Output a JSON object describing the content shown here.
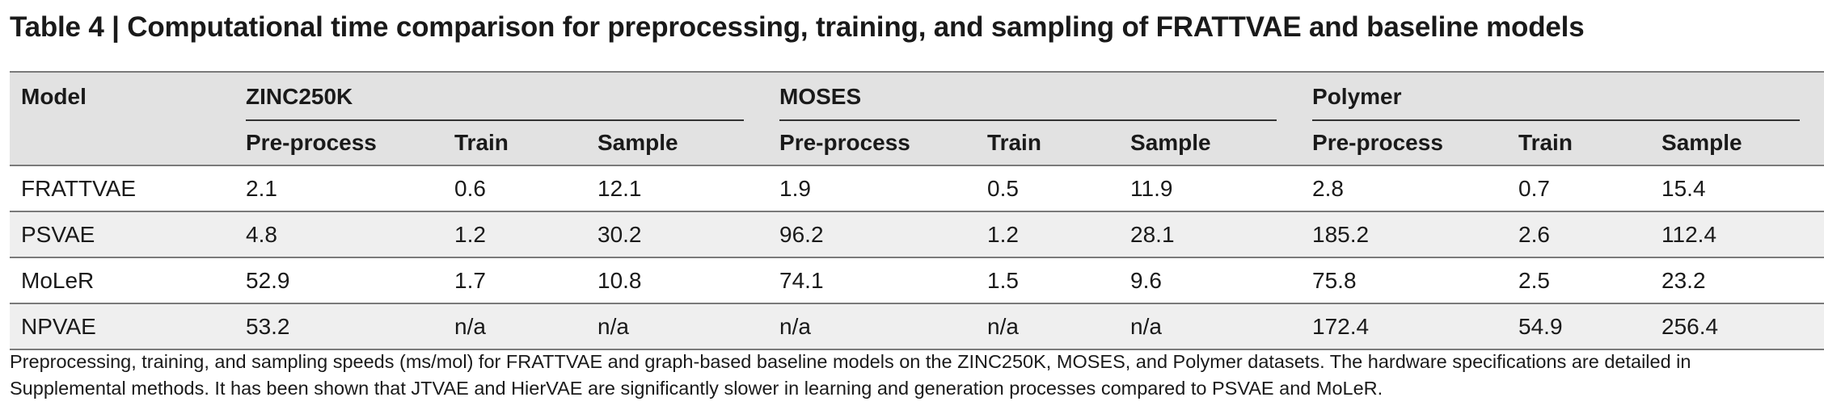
{
  "title": "Table 4 | Computational time comparison for preprocessing, training, and sampling of FRATTVAE and baseline models",
  "table": {
    "model_header": "Model",
    "groups": [
      "ZINC250K",
      "MOSES",
      "Polymer"
    ],
    "subheaders": [
      "Pre-process",
      "Train",
      "Sample",
      "Pre-process",
      "Train",
      "Sample",
      "Pre-process",
      "Train",
      "Sample"
    ],
    "rows": [
      {
        "model": "FRATTVAE",
        "cells": [
          "2.1",
          "0.6",
          "12.1",
          "1.9",
          "0.5",
          "11.9",
          "2.8",
          "0.7",
          "15.4"
        ]
      },
      {
        "model": "PSVAE",
        "cells": [
          "4.8",
          "1.2",
          "30.2",
          "96.2",
          "1.2",
          "28.1",
          "185.2",
          "2.6",
          "112.4"
        ]
      },
      {
        "model": "MoLeR",
        "cells": [
          "52.9",
          "1.7",
          "10.8",
          "74.1",
          "1.5",
          "9.6",
          "75.8",
          "2.5",
          "23.2"
        ]
      },
      {
        "model": "NPVAE",
        "cells": [
          "53.2",
          "n/a",
          "n/a",
          "n/a",
          "n/a",
          "n/a",
          "172.4",
          "54.9",
          "256.4"
        ]
      }
    ]
  },
  "caption": {
    "line1": "Preprocessing, training, and sampling speeds (ms/mol) for FRATTVAE and graph-based baseline models on the ZINC250K, MOSES, and Polymer datasets. The hardware specifications are detailed in",
    "line2": "Supplemental methods. It has been shown that JTVAE and HierVAE are significantly slower in learning and generation processes compared to PSVAE and MoLeR."
  }
}
